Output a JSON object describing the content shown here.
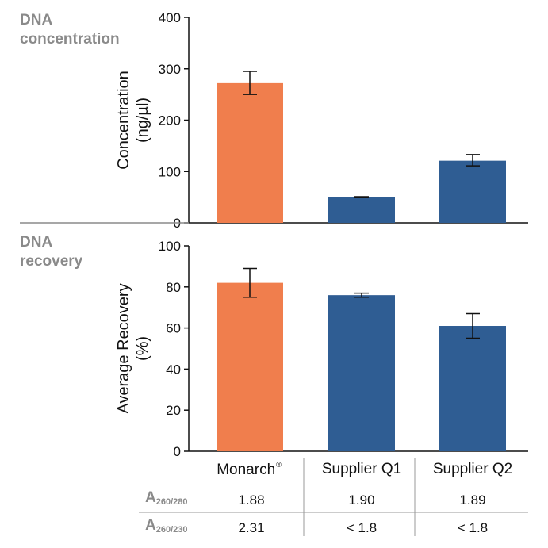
{
  "chart_data": [
    {
      "type": "bar",
      "section_title": [
        "DNA",
        "concentration"
      ],
      "ylabel": [
        "Concentration",
        "(ng/µl)"
      ],
      "ylim": [
        0,
        400
      ],
      "yticks": [
        0,
        100,
        200,
        300,
        400
      ],
      "categories": [
        "Monarch",
        "Supplier Q1",
        "Supplier Q2"
      ],
      "values": [
        272,
        50,
        121
      ],
      "error": [
        [
          250,
          295
        ],
        [
          49,
          51
        ],
        [
          111,
          133
        ]
      ],
      "colors": [
        "#f07e4d",
        "#2f5d93",
        "#2f5d93"
      ]
    },
    {
      "type": "bar",
      "section_title": [
        "DNA",
        "recovery"
      ],
      "ylabel": [
        "Average Recovery",
        "(%)"
      ],
      "ylim": [
        0,
        100
      ],
      "yticks": [
        0,
        20,
        40,
        60,
        80,
        100
      ],
      "categories": [
        "Monarch",
        "Supplier Q1",
        "Supplier Q2"
      ],
      "values": [
        82,
        76,
        61
      ],
      "error": [
        [
          75,
          89
        ],
        [
          75,
          77
        ],
        [
          55,
          67
        ]
      ],
      "colors": [
        "#f07e4d",
        "#2f5d93",
        "#2f5d93"
      ]
    }
  ],
  "category_labels": {
    "monarch": "Monarch",
    "monarch_mark": "®",
    "q1": "Supplier Q1",
    "q2": "Supplier Q2"
  },
  "table": {
    "row1": {
      "label_main": "A",
      "label_sub": "260/280",
      "values": [
        "1.88",
        "1.90",
        "1.89"
      ]
    },
    "row2": {
      "label_main": "A",
      "label_sub": "260/230",
      "values": [
        "2.31",
        "< 1.8",
        "< 1.8"
      ]
    }
  }
}
